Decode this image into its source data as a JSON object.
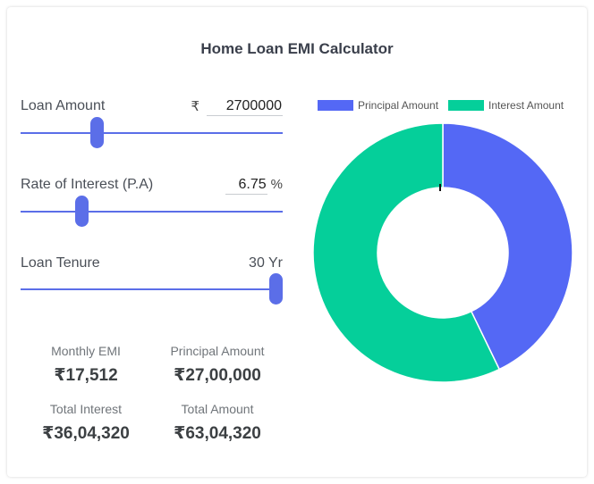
{
  "title": "Home Loan EMI Calculator",
  "inputs": {
    "loan_amount": {
      "label": "Loan Amount",
      "prefix": "₹",
      "value": "2700000",
      "fraction": 0.28
    },
    "interest_rate": {
      "label": "Rate of Interest (P.A)",
      "value": "6.75",
      "suffix": "%",
      "fraction": 0.22
    },
    "tenure": {
      "label": "Loan Tenure",
      "value": "30 Yr",
      "fraction": 1.0
    }
  },
  "results": {
    "monthly_emi": {
      "label": "Monthly EMI",
      "value": "₹17,512"
    },
    "principal": {
      "label": "Principal Amount",
      "value": "₹27,00,000"
    },
    "total_interest": {
      "label": "Total Interest",
      "value": "₹36,04,320"
    },
    "total_amount": {
      "label": "Total Amount",
      "value": "₹63,04,320"
    }
  },
  "colors": {
    "accent": "#5b6ee8",
    "principal": "#5468f5",
    "interest": "#05cf9a"
  },
  "chart_data": {
    "type": "pie",
    "categories": [
      "Principal Amount",
      "Interest Amount"
    ],
    "values": [
      2700000,
      3604320
    ],
    "colors": [
      "#5468f5",
      "#05cf9a"
    ],
    "legend": "top"
  }
}
